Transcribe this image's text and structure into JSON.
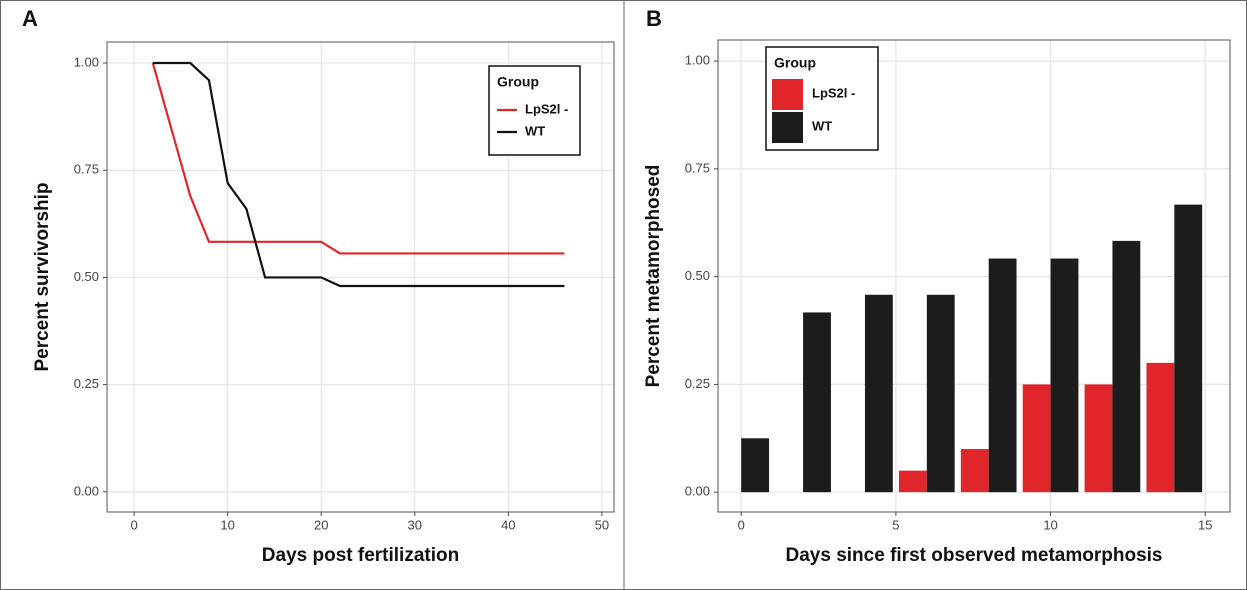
{
  "chart_data": [
    {
      "type": "line",
      "panel_label": "A",
      "x_label": "Days post fertilization",
      "y_label": "Percent survivorship",
      "legend_title": "Group",
      "legend": "top-right",
      "grid": true,
      "xlim": [
        -2.9,
        51.3
      ],
      "ylim": [
        -0.047,
        1.049
      ],
      "xticks": [
        0,
        10,
        20,
        30,
        40,
        50
      ],
      "yticks": [
        {
          "value": 0,
          "label": "0.00"
        },
        {
          "value": 0.25,
          "label": "0.25"
        },
        {
          "value": 0.5,
          "label": "0.50"
        },
        {
          "value": 0.75,
          "label": "0.75"
        },
        {
          "value": 1,
          "label": "1.00"
        }
      ],
      "series": [
        {
          "name": "LpS2l -",
          "color": "#e0262b",
          "x": [
            2,
            6,
            8,
            20,
            22,
            46
          ],
          "values": [
            1.0,
            0.69,
            0.583,
            0.583,
            0.556,
            0.556
          ]
        },
        {
          "name": "WT",
          "color": "#111111",
          "x": [
            2,
            6,
            8,
            10,
            12,
            14,
            20,
            22,
            46
          ],
          "values": [
            1.0,
            1.0,
            0.96,
            0.72,
            0.66,
            0.5,
            0.5,
            0.48,
            0.48
          ]
        }
      ]
    },
    {
      "type": "bar",
      "panel_label": "B",
      "x_label": "Days since first observed metamorphosis",
      "y_label": "Percent metamorphosed",
      "legend_title": "Group",
      "legend": "top-left",
      "grid": true,
      "xlim": [
        -0.75,
        15.8
      ],
      "ylim": [
        -0.046,
        1.049
      ],
      "xticks": [
        0,
        5,
        10,
        15
      ],
      "yticks": [
        {
          "value": 0,
          "label": "0.00"
        },
        {
          "value": 0.25,
          "label": "0.25"
        },
        {
          "value": 0.5,
          "label": "0.50"
        },
        {
          "value": 0.75,
          "label": "0.75"
        },
        {
          "value": 1,
          "label": "1.00"
        }
      ],
      "x": [
        0,
        2,
        4,
        6,
        8,
        10,
        12,
        14
      ],
      "series": [
        {
          "name": "LpS2l -",
          "color": "#e0262b",
          "values": [
            null,
            null,
            null,
            0.05,
            0.1,
            0.25,
            0.25,
            0.3
          ]
        },
        {
          "name": "WT",
          "color": "#1c1c1c",
          "values": [
            0.125,
            0.417,
            0.458,
            0.458,
            0.542,
            0.542,
            0.583,
            0.667
          ]
        }
      ]
    }
  ]
}
